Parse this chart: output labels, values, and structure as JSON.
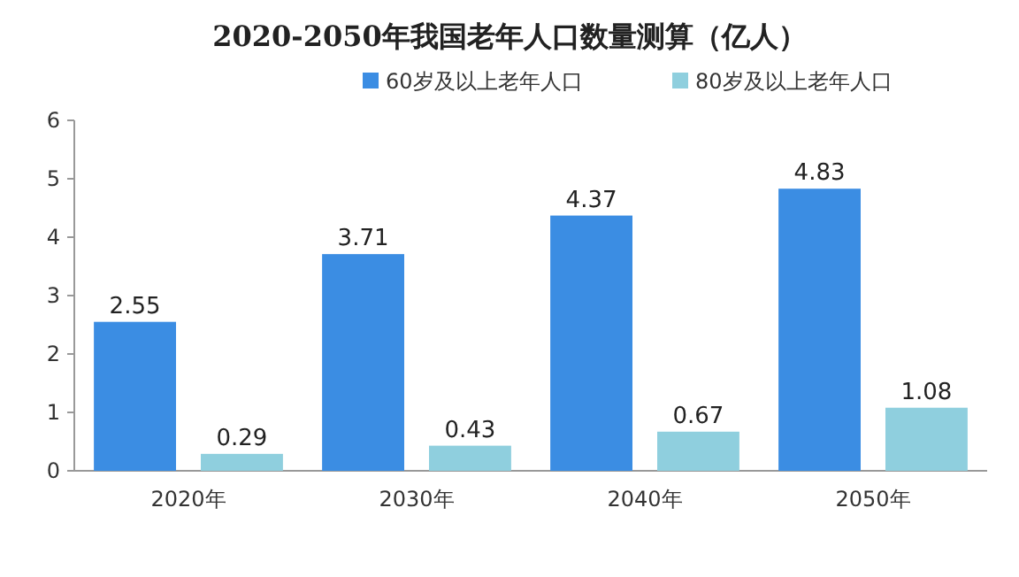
{
  "chart_data": {
    "type": "bar",
    "title": "2020-2050年我国老年人口数量测算（亿人）",
    "categories": [
      "2020年",
      "2030年",
      "2040年",
      "2050年"
    ],
    "series": [
      {
        "name": "60岁及以上老年人口",
        "color": "#3b8de3",
        "values": [
          2.55,
          3.71,
          4.37,
          4.83
        ]
      },
      {
        "name": "80岁及以上老年人口",
        "color": "#8fcfde",
        "values": [
          0.29,
          0.43,
          0.67,
          1.08
        ]
      }
    ],
    "ylim": [
      0,
      6
    ],
    "yticks": [
      0,
      1,
      2,
      3,
      4,
      5,
      6
    ],
    "data_labels": true,
    "legend": "top",
    "grid": false
  }
}
